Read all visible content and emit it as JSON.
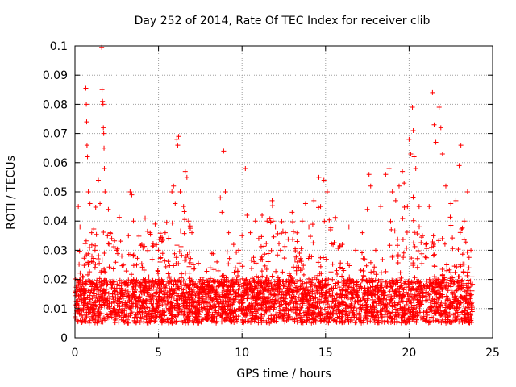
{
  "chart_data": {
    "type": "scatter",
    "title": "Day 252 of 2014, Rate Of TEC Index for receiver clib",
    "xlabel": "GPS time / hours",
    "ylabel": "ROTI / TECUs",
    "xlim": [
      0,
      25
    ],
    "ylim": [
      0,
      0.1
    ],
    "xticks": [
      0,
      5,
      10,
      15,
      20,
      25
    ],
    "yticks": [
      0,
      0.01,
      0.02,
      0.03,
      0.04,
      0.05,
      0.06,
      0.07,
      0.08,
      0.09,
      0.1
    ],
    "xticklabels": [
      "0",
      "5",
      "10",
      "15",
      "20",
      "25"
    ],
    "yticklabels": [
      "0",
      "0.01",
      "0.02",
      "0.03",
      "0.04",
      "0.05",
      "0.06",
      "0.07",
      "0.08",
      "0.09",
      "0.1"
    ],
    "grid": true,
    "marker": "+",
    "color": "#ff0000",
    "series": [
      {
        "name": "ROTI",
        "x_range": [
          0,
          23.8
        ],
        "typical_y_range": [
          0.005,
          0.02
        ],
        "points": [
          [
            0.1,
            0.018
          ],
          [
            0.2,
            0.045
          ],
          [
            0.3,
            0.038
          ],
          [
            0.5,
            0.012
          ],
          [
            0.6,
            0.028
          ],
          [
            0.65,
            0.0855
          ],
          [
            0.68,
            0.08
          ],
          [
            0.7,
            0.074
          ],
          [
            0.72,
            0.066
          ],
          [
            0.75,
            0.062
          ],
          [
            0.8,
            0.05
          ],
          [
            0.9,
            0.046
          ],
          [
            1.0,
            0.036
          ],
          [
            1.2,
            0.03
          ],
          [
            1.4,
            0.054
          ],
          [
            1.5,
            0.046
          ],
          [
            1.6,
            0.0995
          ],
          [
            1.62,
            0.085
          ],
          [
            1.65,
            0.081
          ],
          [
            1.68,
            0.08
          ],
          [
            1.7,
            0.072
          ],
          [
            1.72,
            0.07
          ],
          [
            1.74,
            0.065
          ],
          [
            1.76,
            0.058
          ],
          [
            1.8,
            0.05
          ],
          [
            2.0,
            0.044
          ],
          [
            2.1,
            0.036
          ],
          [
            2.2,
            0.034
          ],
          [
            2.5,
            0.03
          ],
          [
            2.8,
            0.028
          ],
          [
            3.2,
            0.035
          ],
          [
            3.3,
            0.05
          ],
          [
            3.4,
            0.049
          ],
          [
            3.5,
            0.04
          ],
          [
            3.6,
            0.028
          ],
          [
            4.0,
            0.032
          ],
          [
            4.2,
            0.041
          ],
          [
            4.5,
            0.036
          ],
          [
            4.8,
            0.039
          ],
          [
            5.0,
            0.03
          ],
          [
            5.2,
            0.033
          ],
          [
            5.4,
            0.036
          ],
          [
            5.8,
            0.05
          ],
          [
            5.9,
            0.052
          ],
          [
            6.0,
            0.046
          ],
          [
            6.1,
            0.068
          ],
          [
            6.15,
            0.066
          ],
          [
            6.2,
            0.069
          ],
          [
            6.3,
            0.05
          ],
          [
            6.5,
            0.045
          ],
          [
            6.6,
            0.057
          ],
          [
            6.7,
            0.055
          ],
          [
            6.8,
            0.04
          ],
          [
            7.0,
            0.036
          ],
          [
            7.5,
            0.02
          ],
          [
            8.0,
            0.016
          ],
          [
            8.5,
            0.026
          ],
          [
            8.7,
            0.048
          ],
          [
            8.8,
            0.043
          ],
          [
            8.9,
            0.064
          ],
          [
            9.0,
            0.05
          ],
          [
            9.2,
            0.036
          ],
          [
            9.5,
            0.032
          ],
          [
            9.8,
            0.03
          ],
          [
            10.0,
            0.035
          ],
          [
            10.2,
            0.058
          ],
          [
            10.3,
            0.042
          ],
          [
            10.5,
            0.036
          ],
          [
            10.8,
            0.04
          ],
          [
            11.0,
            0.034
          ],
          [
            11.2,
            0.042
          ],
          [
            11.5,
            0.04
          ],
          [
            11.8,
            0.047
          ],
          [
            12.0,
            0.038
          ],
          [
            12.3,
            0.03
          ],
          [
            12.6,
            0.036
          ],
          [
            13.0,
            0.043
          ],
          [
            13.3,
            0.033
          ],
          [
            13.6,
            0.04
          ],
          [
            13.8,
            0.046
          ],
          [
            14.0,
            0.038
          ],
          [
            14.3,
            0.047
          ],
          [
            14.6,
            0.055
          ],
          [
            14.7,
            0.045
          ],
          [
            14.9,
            0.054
          ],
          [
            15.1,
            0.05
          ],
          [
            15.3,
            0.037
          ],
          [
            15.6,
            0.041
          ],
          [
            16.0,
            0.032
          ],
          [
            16.4,
            0.038
          ],
          [
            16.8,
            0.03
          ],
          [
            17.2,
            0.036
          ],
          [
            17.5,
            0.044
          ],
          [
            17.6,
            0.056
          ],
          [
            17.7,
            0.052
          ],
          [
            18.0,
            0.03
          ],
          [
            18.3,
            0.045
          ],
          [
            18.6,
            0.056
          ],
          [
            18.8,
            0.058
          ],
          [
            19.0,
            0.05
          ],
          [
            19.2,
            0.047
          ],
          [
            19.4,
            0.052
          ],
          [
            19.6,
            0.057
          ],
          [
            19.7,
            0.053
          ],
          [
            19.9,
            0.045
          ],
          [
            20.0,
            0.068
          ],
          [
            20.1,
            0.063
          ],
          [
            20.2,
            0.079
          ],
          [
            20.25,
            0.071
          ],
          [
            20.3,
            0.062
          ],
          [
            20.4,
            0.058
          ],
          [
            20.6,
            0.045
          ],
          [
            20.8,
            0.035
          ],
          [
            21.0,
            0.032
          ],
          [
            21.2,
            0.045
          ],
          [
            21.4,
            0.084
          ],
          [
            21.5,
            0.073
          ],
          [
            21.6,
            0.067
          ],
          [
            21.8,
            0.079
          ],
          [
            21.9,
            0.072
          ],
          [
            22.0,
            0.063
          ],
          [
            22.2,
            0.052
          ],
          [
            22.5,
            0.046
          ],
          [
            22.8,
            0.047
          ],
          [
            23.0,
            0.059
          ],
          [
            23.1,
            0.066
          ],
          [
            23.3,
            0.04
          ],
          [
            23.5,
            0.05
          ],
          [
            23.7,
            0.03
          ]
        ]
      }
    ]
  }
}
